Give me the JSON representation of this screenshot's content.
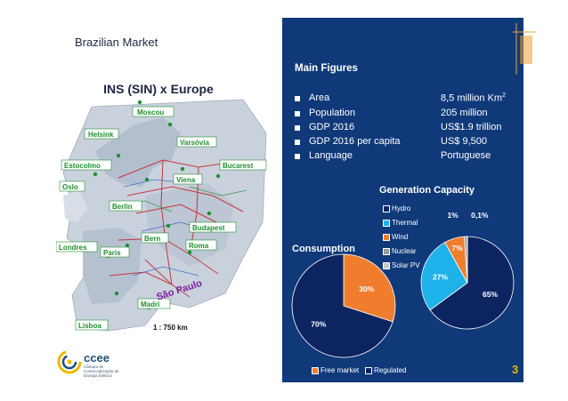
{
  "header": {
    "title": "Brazilian Market"
  },
  "map": {
    "title": "INS (SIN) x Europe",
    "scale": "1 : 750 km",
    "cities": [
      "Moscou",
      "Helsink",
      "Varsóvia",
      "Estocolmo",
      "Bucarest",
      "Oslo",
      "Viena",
      "Berlin",
      "Budapest",
      "Bern",
      "Roma",
      "Londres",
      "Paris",
      "Madri",
      "Lisboa",
      "São Paulo"
    ]
  },
  "logo": {
    "name": "ccee",
    "subtitle": "Câmara de Comercialização de Energia Elétrica"
  },
  "main_figures": {
    "title": "Main Figures",
    "rows": [
      {
        "label": "Area",
        "value": "8,5 million Km",
        "sup": "2"
      },
      {
        "label": "Population",
        "value": "205 million",
        "sup": ""
      },
      {
        "label": "GDP 2016",
        "value": "US$1.9 trillion",
        "sup": ""
      },
      {
        "label": "GDP 2016 per capita",
        "value": "US$ 9,500",
        "sup": ""
      },
      {
        "label": "Language",
        "value": "Portuguese",
        "sup": ""
      }
    ]
  },
  "chart_data": [
    {
      "type": "pie",
      "title": "Generation Capacity",
      "categories": [
        "Hydro",
        "Thermal",
        "Wind",
        "Nuclear",
        "Solar PV"
      ],
      "values": [
        65,
        27,
        7,
        1,
        0.1
      ],
      "labels": [
        "65%",
        "27%",
        "7%",
        "1%",
        "0,1%"
      ],
      "colors": [
        "#0c2560",
        "#1fb1ea",
        "#ef7d2d",
        "#9b9b9b",
        "#c7c7c7"
      ],
      "legend": "left"
    },
    {
      "type": "pie",
      "title": "Consumption",
      "categories": [
        "Free market",
        "Regulated"
      ],
      "values": [
        30,
        70
      ],
      "labels": [
        "30%",
        "70%"
      ],
      "colors": [
        "#ef7d2d",
        "#0c2560"
      ],
      "legend": "bottom"
    }
  ],
  "footer": {
    "page": "3"
  },
  "colors": {
    "panel": "#10397a",
    "orange": "#ef7d2d",
    "cyan": "#1fb1ea",
    "navy": "#0c2560",
    "page_number": "#f0b800"
  }
}
